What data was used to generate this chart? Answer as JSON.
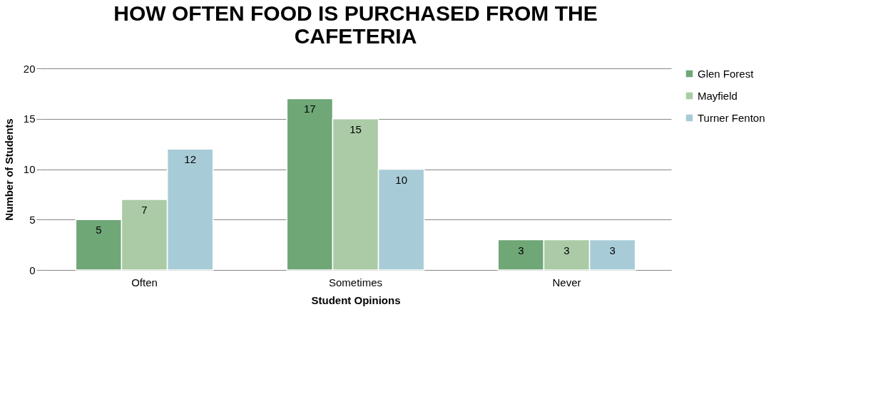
{
  "chart_data": {
    "type": "bar",
    "title": "HOW OFTEN FOOD IS PURCHASED FROM THE CAFETERIA",
    "xlabel": "Student Opinions",
    "ylabel": "Number of Students",
    "categories": [
      "Often",
      "Sometimes",
      "Never"
    ],
    "series": [
      {
        "name": "Glen Forest",
        "color": "#6fa777",
        "values": [
          5,
          17,
          3
        ]
      },
      {
        "name": "Mayfield",
        "color": "#aacba6",
        "values": [
          7,
          15,
          3
        ]
      },
      {
        "name": "Turner Fenton",
        "color": "#a8ccd7",
        "values": [
          12,
          10,
          3
        ]
      }
    ],
    "ylim": [
      0,
      20
    ],
    "yticks": [
      0,
      5,
      10,
      15,
      20
    ],
    "grid": "y",
    "legend": "right",
    "data_labels": true
  }
}
